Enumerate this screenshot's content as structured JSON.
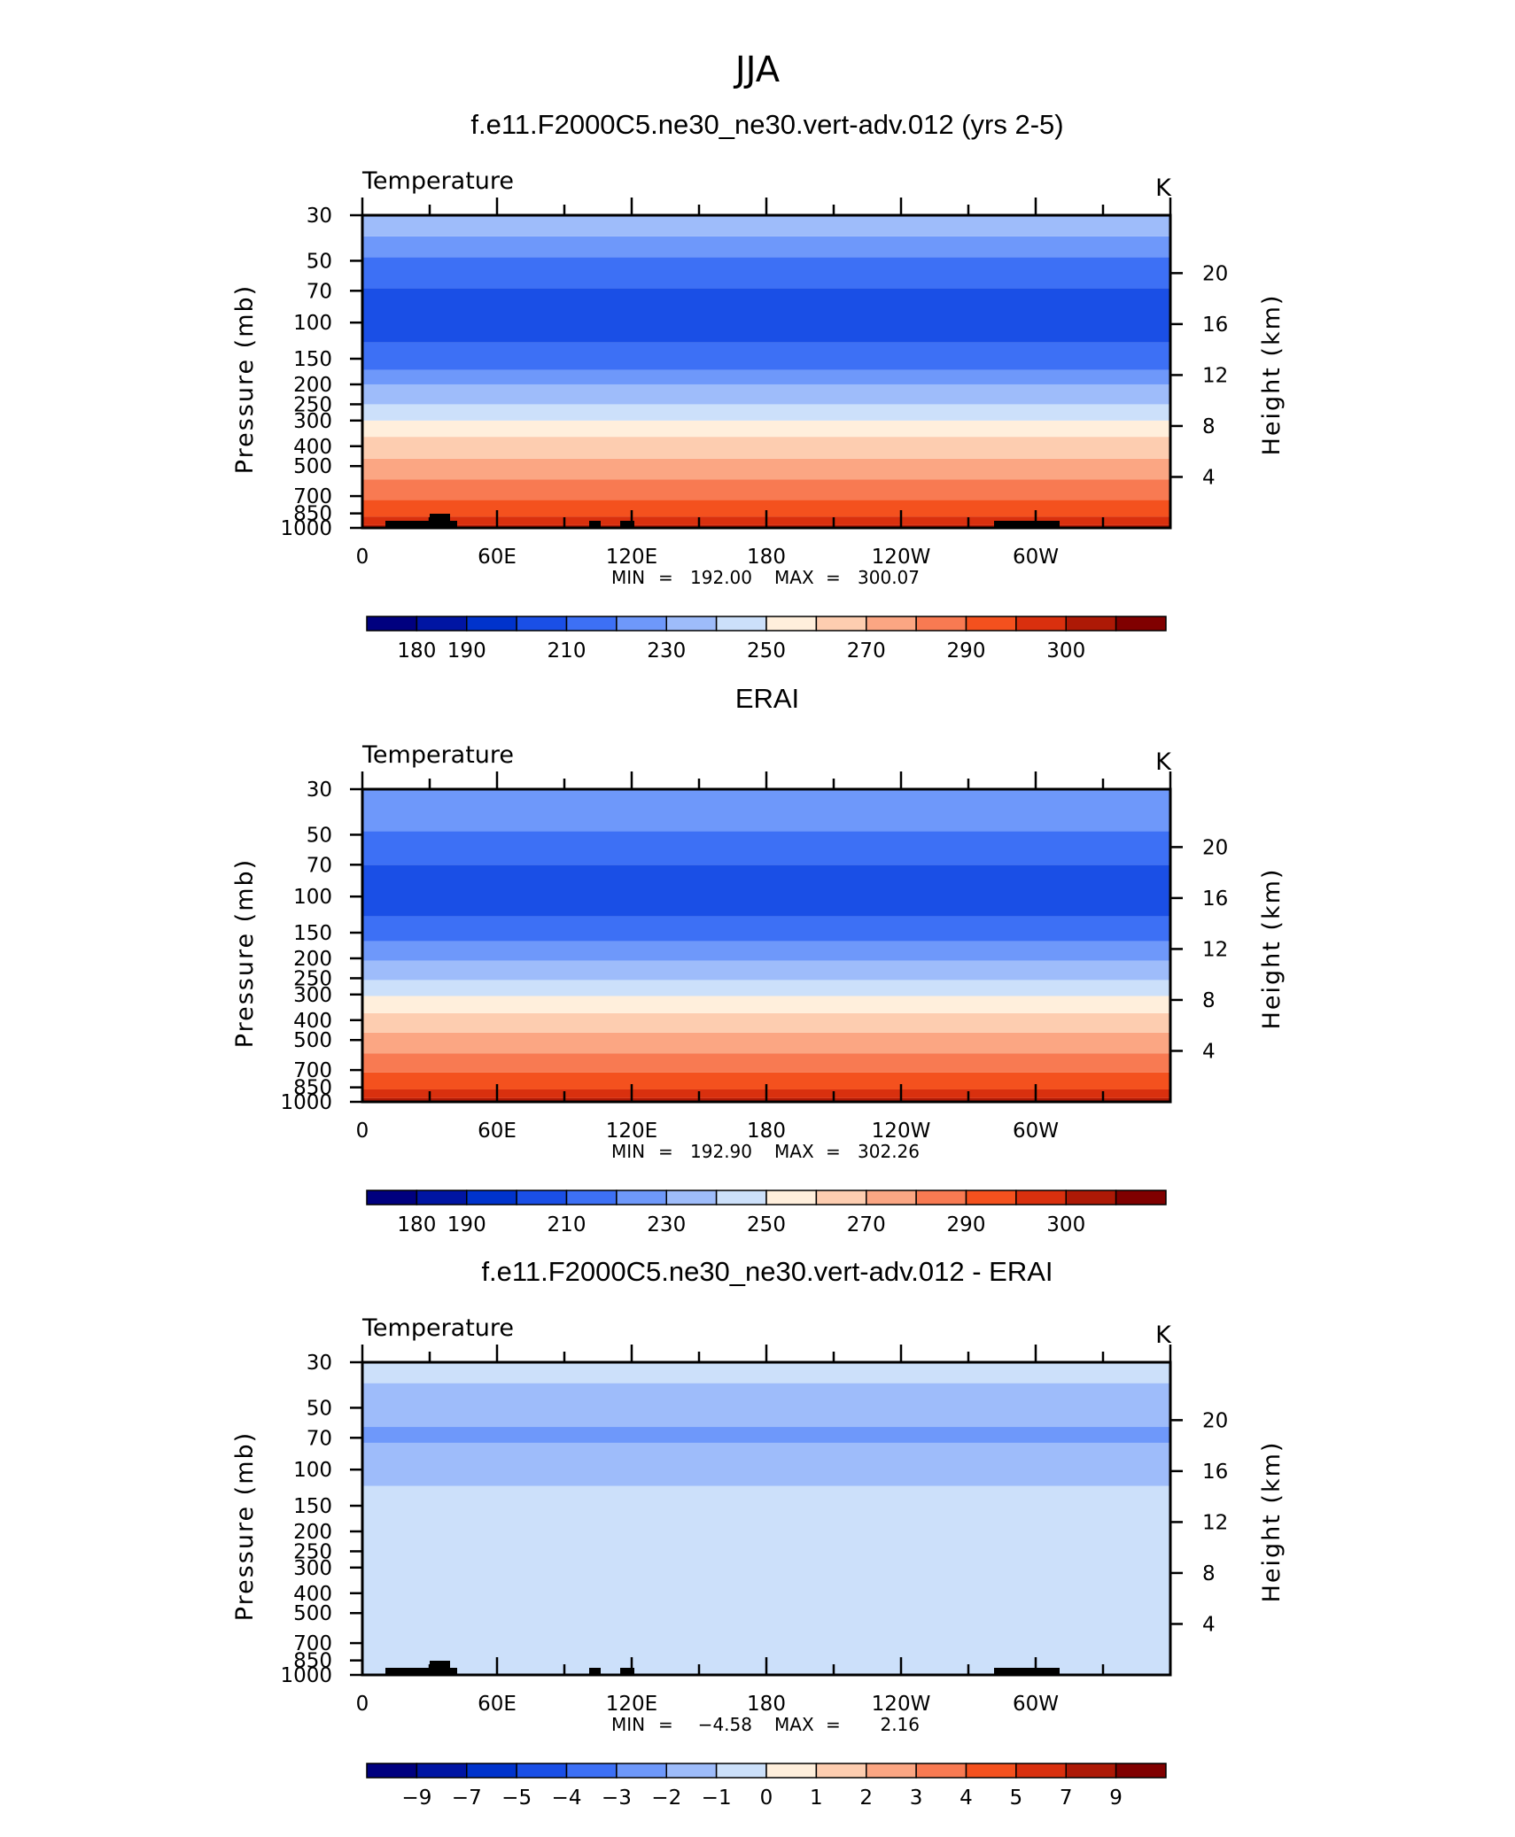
{
  "figure": {
    "title": "JJA"
  },
  "chart_data": [
    {
      "type": "heatmap",
      "title": "f.e11.F2000C5.ne30_ne30.vert-adv.012 (yrs 2-5)",
      "variable_label": "Temperature",
      "units": "K",
      "ylabel": "Pressure (mb)",
      "ylabel_right": "Height (km)",
      "y_scale": "log",
      "y_ticks": [
        "30",
        "50",
        "70",
        "100",
        "150",
        "200",
        "250",
        "300",
        "400",
        "500",
        "700",
        "850",
        "1000"
      ],
      "y_ticks_right": [
        "20",
        "16",
        "12",
        "8",
        "4"
      ],
      "x_ticks": [
        "0",
        "60E",
        "120E",
        "180",
        "120W",
        "60W"
      ],
      "stats": {
        "min_label": "MIN",
        "min": "192.00",
        "max_label": "MAX",
        "max": "300.07"
      },
      "colorbar": {
        "labels": [
          "180",
          "190",
          "210",
          "230",
          "250",
          "270",
          "290",
          "300"
        ],
        "colors": [
          "#00007f",
          "#0015a3",
          "#0033cc",
          "#1a4fe6",
          "#3d70f5",
          "#6e98fa",
          "#9ebcfa",
          "#cce0fa",
          "#ffefdc",
          "#fdcdb0",
          "#fba683",
          "#f87a52",
          "#f4511e",
          "#d9300e",
          "#ad1906",
          "#800000"
        ]
      },
      "bands": [
        {
          "p": [
            1000,
            970
          ],
          "color": "#ad1906"
        },
        {
          "p": [
            970,
            880
          ],
          "color": "#d9300e"
        },
        {
          "p": [
            880,
            730
          ],
          "color": "#f4511e"
        },
        {
          "p": [
            730,
            580
          ],
          "color": "#f87a52"
        },
        {
          "p": [
            580,
            460
          ],
          "color": "#fba683"
        },
        {
          "p": [
            460,
            360
          ],
          "color": "#fdcdb0"
        },
        {
          "p": [
            360,
            300
          ],
          "color": "#ffefdc"
        },
        {
          "p": [
            300,
            250
          ],
          "color": "#cce0fa"
        },
        {
          "p": [
            250,
            200
          ],
          "color": "#9ebcfa"
        },
        {
          "p": [
            200,
            170
          ],
          "color": "#6e98fa"
        },
        {
          "p": [
            170,
            125
          ],
          "color": "#3d70f5"
        },
        {
          "p": [
            125,
            68
          ],
          "color": "#1a4fe6"
        },
        {
          "p": [
            68,
            48
          ],
          "color": "#3d70f5"
        },
        {
          "p": [
            48,
            38
          ],
          "color": "#6e98fa"
        },
        {
          "p": [
            38,
            30
          ],
          "color": "#9ebcfa"
        }
      ],
      "topography": true
    },
    {
      "type": "heatmap",
      "title": "ERAI",
      "variable_label": "Temperature",
      "units": "K",
      "ylabel": "Pressure (mb)",
      "ylabel_right": "Height (km)",
      "y_scale": "log",
      "y_ticks": [
        "30",
        "50",
        "70",
        "100",
        "150",
        "200",
        "250",
        "300",
        "400",
        "500",
        "700",
        "850",
        "1000"
      ],
      "y_ticks_right": [
        "20",
        "16",
        "12",
        "8",
        "4"
      ],
      "x_ticks": [
        "0",
        "60E",
        "120E",
        "180",
        "120W",
        "60W"
      ],
      "stats": {
        "min_label": "MIN",
        "min": "192.90",
        "max_label": "MAX",
        "max": "302.26"
      },
      "colorbar": {
        "labels": [
          "180",
          "190",
          "210",
          "230",
          "250",
          "270",
          "290",
          "300"
        ],
        "colors": [
          "#00007f",
          "#0015a3",
          "#0033cc",
          "#1a4fe6",
          "#3d70f5",
          "#6e98fa",
          "#9ebcfa",
          "#cce0fa",
          "#ffefdc",
          "#fdcdb0",
          "#fba683",
          "#f87a52",
          "#f4511e",
          "#d9300e",
          "#ad1906",
          "#800000"
        ]
      },
      "bands": [
        {
          "p": [
            1000,
            960
          ],
          "color": "#ad1906"
        },
        {
          "p": [
            960,
            870
          ],
          "color": "#d9300e"
        },
        {
          "p": [
            870,
            720
          ],
          "color": "#f4511e"
        },
        {
          "p": [
            720,
            580
          ],
          "color": "#f87a52"
        },
        {
          "p": [
            580,
            460
          ],
          "color": "#fba683"
        },
        {
          "p": [
            460,
            370
          ],
          "color": "#fdcdb0"
        },
        {
          "p": [
            370,
            305
          ],
          "color": "#ffefdc"
        },
        {
          "p": [
            305,
            255
          ],
          "color": "#cce0fa"
        },
        {
          "p": [
            255,
            205
          ],
          "color": "#9ebcfa"
        },
        {
          "p": [
            205,
            165
          ],
          "color": "#6e98fa"
        },
        {
          "p": [
            165,
            125
          ],
          "color": "#3d70f5"
        },
        {
          "p": [
            125,
            70
          ],
          "color": "#1a4fe6"
        },
        {
          "p": [
            70,
            48
          ],
          "color": "#3d70f5"
        },
        {
          "p": [
            48,
            30
          ],
          "color": "#6e98fa"
        }
      ],
      "topography": false
    },
    {
      "type": "heatmap",
      "title": "f.e11.F2000C5.ne30_ne30.vert-adv.012 - ERAI",
      "variable_label": "Temperature",
      "units": "K",
      "ylabel": "Pressure (mb)",
      "ylabel_right": "Height (km)",
      "y_scale": "log",
      "y_ticks": [
        "30",
        "50",
        "70",
        "100",
        "150",
        "200",
        "250",
        "300",
        "400",
        "500",
        "700",
        "850",
        "1000"
      ],
      "y_ticks_right": [
        "20",
        "16",
        "12",
        "8",
        "4"
      ],
      "x_ticks": [
        "0",
        "60E",
        "120E",
        "180",
        "120W",
        "60W"
      ],
      "stats": {
        "min_label": "MIN",
        "min": "−4.58",
        "max_label": "MAX",
        "max": "2.16"
      },
      "colorbar": {
        "labels": [
          "−9",
          "−7",
          "−5",
          "−4",
          "−3",
          "−2",
          "−1",
          "0",
          "1",
          "2",
          "3",
          "4",
          "5",
          "7",
          "9"
        ],
        "colors": [
          "#00007f",
          "#0015a3",
          "#0033cc",
          "#1a4fe6",
          "#3d70f5",
          "#6e98fa",
          "#9ebcfa",
          "#cce0fa",
          "#ffefdc",
          "#fdcdb0",
          "#fba683",
          "#f87a52",
          "#f4511e",
          "#d9300e",
          "#ad1906",
          "#800000"
        ]
      },
      "bands": [
        {
          "p": [
            1000,
            30
          ],
          "color": "#cce0fa"
        },
        {
          "p": [
            120,
            30
          ],
          "color": "#9ebcfa"
        },
        {
          "p": [
            38,
            30
          ],
          "color": "#cce0fa"
        },
        {
          "p": [
            74,
            62
          ],
          "color": "#6e98fa"
        }
      ],
      "topography": true
    }
  ]
}
